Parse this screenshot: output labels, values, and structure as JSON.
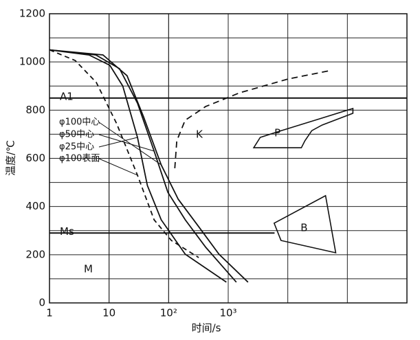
{
  "chart_data": {
    "type": "line",
    "xlabel": "时间/s",
    "ylabel": "温度/℃",
    "log_x": true,
    "grid": true,
    "xlim": [
      1,
      1000000
    ],
    "ylim": [
      0,
      1200
    ],
    "xticks": [
      1,
      10,
      {
        "value": 100,
        "label": "10²"
      },
      {
        "value": 1000,
        "label": "10³"
      }
    ],
    "yticks": [
      0,
      200,
      400,
      600,
      800,
      1000,
      1200
    ],
    "series": [
      {
        "name": "φ100中心",
        "color": "#111",
        "dash": "solid",
        "x": [
          1,
          7.9,
          20,
          38,
          75,
          145,
          320,
          700,
          2150
        ],
        "values": [
          1050,
          1029,
          943,
          772,
          573,
          430,
          316,
          202,
          86
        ]
      },
      {
        "name": "φ50中心",
        "color": "#111",
        "dash": "solid",
        "x": [
          1,
          6,
          15,
          30,
          57,
          97,
          190,
          420,
          1370
        ],
        "values": [
          1050,
          1029,
          972,
          829,
          630,
          459,
          345,
          231,
          86
        ]
      },
      {
        "name": "φ25中心",
        "color": "#111",
        "dash": "solid",
        "x": [
          1,
          4.6,
          10.3,
          17,
          30,
          44,
          75,
          190,
          930
        ],
        "values": [
          1050,
          1029,
          986,
          900,
          687,
          487,
          345,
          202,
          86
        ]
      },
      {
        "name": "φ100表面",
        "color": "#111",
        "dash": "dashed",
        "x": [
          1,
          2.7,
          6.1,
          13.4,
          30,
          57,
          111,
          320
        ],
        "values": [
          1050,
          1006,
          915,
          744,
          530,
          345,
          259,
          188
        ]
      }
    ],
    "levels": [
      {
        "label": "A1",
        "value": 850
      },
      {
        "label": "Ms",
        "value": 290
      }
    ],
    "field_label": "M",
    "transformation_lines": [
      {
        "label": "K",
        "x": [
          127,
          137,
          189,
          417,
          1560,
          10000,
          49000
        ],
        "values": [
          559,
          673,
          758,
          815,
          872,
          929,
          963
        ]
      }
    ],
    "regions": [
      {
        "label": "P",
        "x": [
          2680,
          3450,
          7760,
          37600,
          124000,
          124000,
          37600,
          25300,
          19400,
          16900
        ],
        "values": [
          644,
          687,
          715,
          767,
          807,
          787,
          738,
          715,
          673,
          644
        ]
      },
      {
        "label": "B",
        "x": [
          5900,
          43000,
          63700,
          7700
        ],
        "values": [
          331,
          445,
          208,
          259
        ]
      }
    ]
  }
}
